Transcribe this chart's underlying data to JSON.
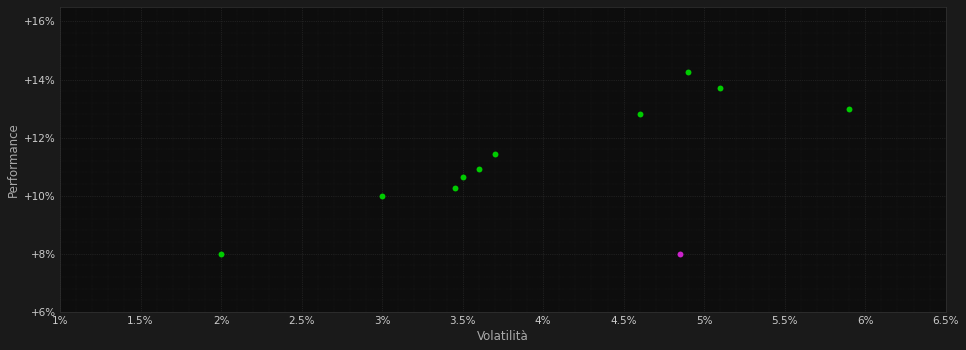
{
  "xlabel": "Volatilità",
  "ylabel": "Performance",
  "outer_bg": "#1a1a1a",
  "plot_bg": "#0d0d0d",
  "grid_color": "#3a3a3a",
  "text_color": "#cccccc",
  "axis_label_color": "#aaaaaa",
  "xlim": [
    0.01,
    0.065
  ],
  "ylim": [
    0.06,
    0.165
  ],
  "xticks": [
    0.01,
    0.015,
    0.02,
    0.025,
    0.03,
    0.035,
    0.04,
    0.045,
    0.05,
    0.055,
    0.06,
    0.065
  ],
  "xtick_labels": [
    "1%",
    "1.5%",
    "2%",
    "2.5%",
    "3%",
    "3.5%",
    "4%",
    "4.5%",
    "5%",
    "5.5%",
    "6%",
    "6.5%"
  ],
  "yticks": [
    0.06,
    0.08,
    0.1,
    0.12,
    0.14,
    0.16
  ],
  "ytick_labels": [
    "+6%",
    "+8%",
    "+10%",
    "+12%",
    "+14%",
    "+16%"
  ],
  "green_points": [
    [
      0.02,
      0.08
    ],
    [
      0.03,
      0.1
    ],
    [
      0.0345,
      0.1025
    ],
    [
      0.035,
      0.1065
    ],
    [
      0.036,
      0.109
    ],
    [
      0.037,
      0.1145
    ],
    [
      0.046,
      0.128
    ],
    [
      0.049,
      0.1425
    ],
    [
      0.051,
      0.137
    ],
    [
      0.059,
      0.13
    ]
  ],
  "magenta_points": [
    [
      0.0485,
      0.08
    ]
  ],
  "green_color": "#00cc00",
  "magenta_color": "#cc22cc",
  "marker_size": 18
}
